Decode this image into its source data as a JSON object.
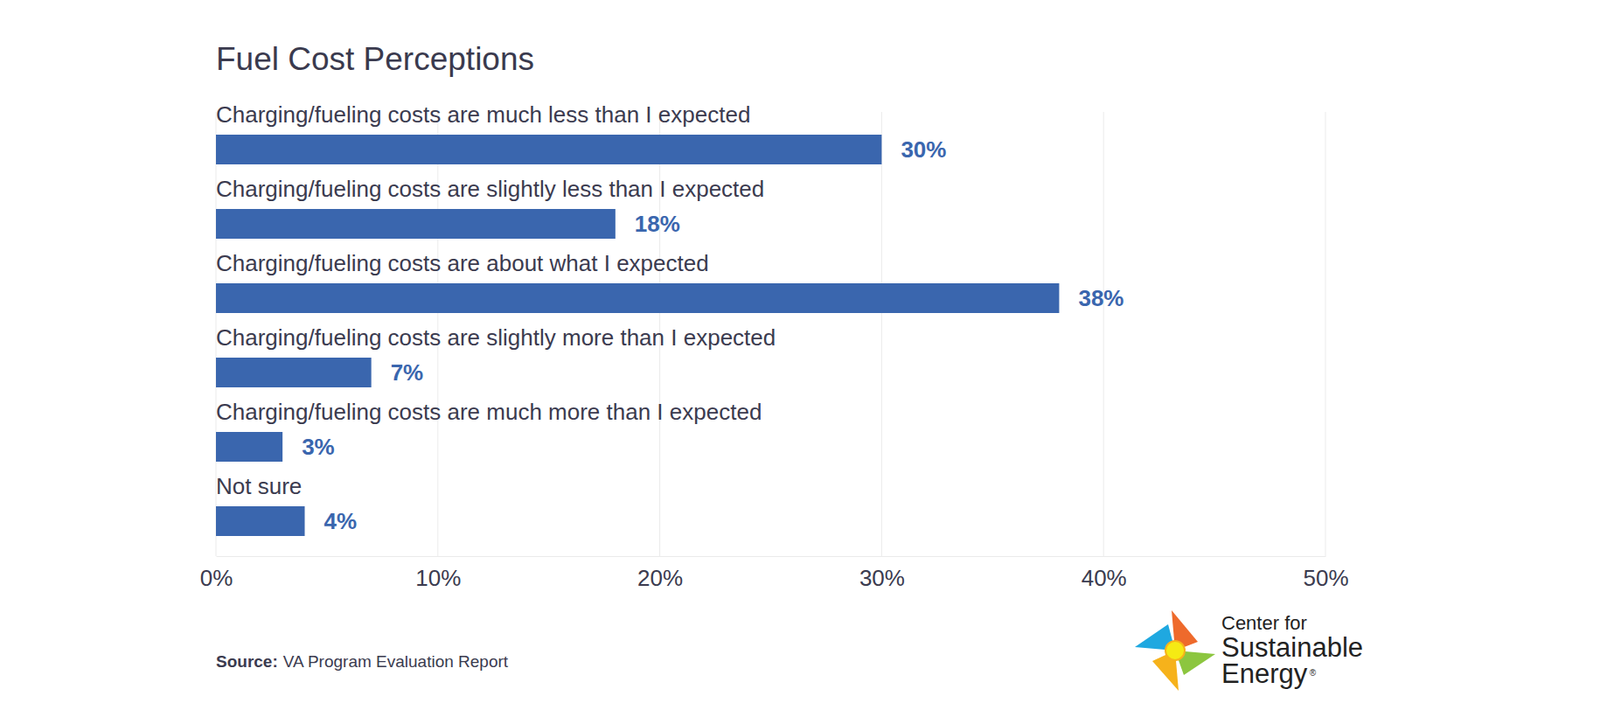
{
  "chart_data": {
    "type": "bar",
    "title": "Fuel Cost Perceptions",
    "orientation": "horizontal",
    "categories": [
      "Charging/fueling costs are much less than I expected",
      "Charging/fueling costs are slightly less than I expected",
      "Charging/fueling costs are about what I expected",
      "Charging/fueling costs are slightly more than I expected",
      "Charging/fueling costs are much more than I expected",
      "Not sure"
    ],
    "values": [
      30,
      18,
      38,
      7,
      3,
      4
    ],
    "value_labels": [
      "30%",
      "18%",
      "38%",
      "7%",
      "3%",
      "4%"
    ],
    "data_labels": true,
    "color": "#3a66ae",
    "xlim": [
      0,
      50
    ],
    "xticks": [
      {
        "value": 0,
        "label": "0%"
      },
      {
        "value": 10,
        "label": "10%"
      },
      {
        "value": 20,
        "label": "20%"
      },
      {
        "value": 30,
        "label": "30%"
      },
      {
        "value": 40,
        "label": "40%"
      },
      {
        "value": 50,
        "label": "50%"
      }
    ],
    "grid": true,
    "source": {
      "label": "Source:",
      "text": "VA Program Evaluation Report"
    },
    "logo_text": [
      "Center for",
      "Sustainable",
      "Energy"
    ],
    "logo_mark": "®"
  }
}
